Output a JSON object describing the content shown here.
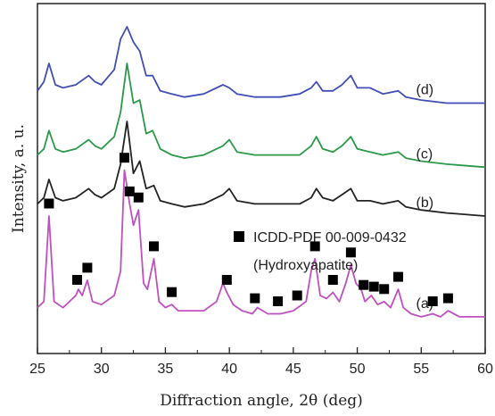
{
  "chart_data": {
    "type": "line",
    "xlabel": "Diffraction angle, 2θ (deg)",
    "ylabel": "Intensity, a. u.",
    "xlim": [
      25,
      60
    ],
    "x_ticks": [
      25,
      30,
      35,
      40,
      45,
      50,
      55,
      60
    ],
    "y_ticks_shown": false,
    "legend": {
      "marker": "square",
      "marker_color": "#000000",
      "line1": "ICDD-PDF 00-009-0432",
      "line2": "(Hydroxyapatite)",
      "placement": "middle-right"
    },
    "reference_peaks": [
      25.9,
      28.1,
      28.9,
      31.8,
      32.2,
      32.9,
      34.1,
      35.5,
      39.8,
      42.0,
      43.8,
      45.3,
      46.7,
      48.1,
      49.5,
      50.5,
      51.3,
      52.1,
      53.2,
      55.9,
      57.1
    ],
    "series": [
      {
        "label": "(a)",
        "color": "#c050c0",
        "baseline": 0.05,
        "x": [
          25,
          25.5,
          25.9,
          26.3,
          27,
          28,
          28.2,
          28.5,
          28.9,
          29.3,
          30,
          31,
          31.5,
          31.8,
          32.2,
          32.5,
          32.9,
          33.3,
          33.6,
          34.1,
          34.5,
          35,
          35.5,
          36,
          37,
          38,
          39,
          39.5,
          39.8,
          40.3,
          41,
          41.8,
          42.2,
          43,
          44,
          45,
          46,
          46.4,
          46.7,
          47.1,
          47.6,
          48.1,
          48.6,
          49.1,
          49.5,
          49.9,
          50.3,
          50.6,
          51.1,
          51.6,
          52.1,
          52.6,
          53.2,
          53.6,
          54.2,
          55,
          55.9,
          56.5,
          57.1,
          58,
          59,
          60
        ],
        "y": [
          0.08,
          0.1,
          0.38,
          0.1,
          0.08,
          0.12,
          0.14,
          0.12,
          0.17,
          0.1,
          0.09,
          0.12,
          0.2,
          0.53,
          0.42,
          0.35,
          0.4,
          0.16,
          0.14,
          0.24,
          0.1,
          0.08,
          0.09,
          0.07,
          0.07,
          0.07,
          0.1,
          0.16,
          0.13,
          0.09,
          0.07,
          0.06,
          0.08,
          0.06,
          0.06,
          0.07,
          0.1,
          0.2,
          0.24,
          0.12,
          0.11,
          0.13,
          0.1,
          0.16,
          0.22,
          0.16,
          0.14,
          0.1,
          0.12,
          0.09,
          0.1,
          0.08,
          0.14,
          0.08,
          0.06,
          0.05,
          0.06,
          0.05,
          0.07,
          0.05,
          0.05,
          0.05
        ]
      },
      {
        "label": "(b)",
        "color": "#222222",
        "baseline": 0.38,
        "x": [
          25,
          25.5,
          25.9,
          26.4,
          27,
          28,
          29,
          29.5,
          30,
          31,
          31.5,
          32,
          32.5,
          33,
          33.5,
          34.1,
          34.6,
          35.5,
          36.5,
          38,
          39.5,
          40,
          40.6,
          42,
          44,
          45.5,
          46.4,
          46.8,
          47.3,
          48.1,
          48.8,
          49.5,
          50,
          51,
          52,
          53.2,
          53.8,
          55,
          57,
          60
        ],
        "y": [
          0.42,
          0.44,
          0.5,
          0.44,
          0.43,
          0.44,
          0.47,
          0.45,
          0.44,
          0.47,
          0.55,
          0.69,
          0.52,
          0.56,
          0.47,
          0.48,
          0.43,
          0.42,
          0.41,
          0.42,
          0.45,
          0.47,
          0.43,
          0.42,
          0.42,
          0.42,
          0.44,
          0.47,
          0.44,
          0.43,
          0.45,
          0.47,
          0.43,
          0.43,
          0.42,
          0.43,
          0.41,
          0.4,
          0.39,
          0.38
        ]
      },
      {
        "label": "(c)",
        "color": "#2a9a48",
        "baseline": 0.54,
        "x": [
          25,
          25.5,
          25.9,
          26.4,
          27,
          28,
          29,
          29.5,
          30,
          31,
          31.5,
          32,
          32.5,
          33,
          33.5,
          34,
          34.6,
          35.5,
          36.5,
          38,
          39.5,
          40,
          40.6,
          42,
          44,
          45.5,
          46.4,
          46.8,
          47.3,
          48.1,
          48.8,
          49.5,
          50,
          51,
          52,
          53.2,
          53.8,
          55,
          57,
          60
        ],
        "y": [
          0.58,
          0.6,
          0.66,
          0.6,
          0.59,
          0.6,
          0.63,
          0.61,
          0.6,
          0.64,
          0.72,
          0.88,
          0.75,
          0.76,
          0.65,
          0.66,
          0.6,
          0.58,
          0.57,
          0.58,
          0.61,
          0.63,
          0.59,
          0.58,
          0.58,
          0.58,
          0.61,
          0.64,
          0.6,
          0.59,
          0.61,
          0.64,
          0.6,
          0.59,
          0.58,
          0.59,
          0.57,
          0.56,
          0.55,
          0.54
        ]
      },
      {
        "label": "(d)",
        "color": "#3f4fb5",
        "baseline": 0.75,
        "x": [
          25,
          25.5,
          25.9,
          26.4,
          27,
          28,
          29,
          29.5,
          30,
          31,
          31.5,
          32,
          32.5,
          33,
          33.5,
          34,
          34.6,
          35.5,
          36.5,
          38,
          39.5,
          40,
          40.6,
          42,
          44,
          45.5,
          46.4,
          46.8,
          47.3,
          48.1,
          48.8,
          49.5,
          50,
          51,
          52,
          53.2,
          53.8,
          55,
          57,
          60
        ],
        "y": [
          0.79,
          0.82,
          0.88,
          0.81,
          0.8,
          0.81,
          0.84,
          0.82,
          0.81,
          0.86,
          0.96,
          1.0,
          0.95,
          0.92,
          0.84,
          0.84,
          0.79,
          0.78,
          0.77,
          0.78,
          0.81,
          0.8,
          0.78,
          0.77,
          0.77,
          0.78,
          0.8,
          0.82,
          0.79,
          0.79,
          0.81,
          0.84,
          0.8,
          0.8,
          0.78,
          0.79,
          0.77,
          0.76,
          0.75,
          0.75
        ]
      }
    ]
  }
}
